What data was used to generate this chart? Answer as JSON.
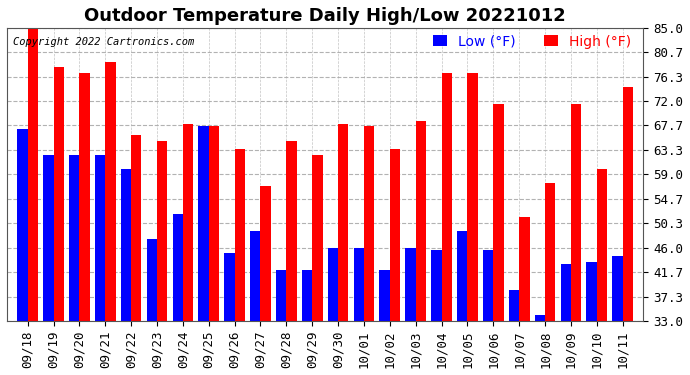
{
  "title": "Outdoor Temperature Daily High/Low 20221012",
  "copyright": "Copyright 2022 Cartronics.com",
  "legend_low": "Low (°F)",
  "legend_high": "High (°F)",
  "dates": [
    "09/18",
    "09/19",
    "09/20",
    "09/21",
    "09/22",
    "09/23",
    "09/24",
    "09/25",
    "09/26",
    "09/27",
    "09/28",
    "09/29",
    "09/30",
    "10/01",
    "10/02",
    "10/03",
    "10/04",
    "10/05",
    "10/06",
    "10/07",
    "10/08",
    "10/09",
    "10/10",
    "10/11"
  ],
  "high": [
    85.0,
    78.0,
    77.0,
    79.0,
    66.0,
    65.0,
    68.0,
    67.5,
    63.5,
    57.0,
    65.0,
    62.5,
    68.0,
    67.5,
    63.5,
    68.5,
    77.0,
    77.0,
    71.5,
    51.5,
    57.5,
    71.5,
    60.0,
    74.5
  ],
  "low": [
    67.0,
    62.5,
    62.5,
    62.5,
    60.0,
    47.5,
    52.0,
    67.5,
    45.0,
    49.0,
    42.0,
    42.0,
    46.0,
    46.0,
    42.0,
    46.0,
    45.5,
    49.0,
    45.5,
    38.5,
    34.0,
    43.0,
    43.5,
    44.5
  ],
  "yticks": [
    33.0,
    37.3,
    41.7,
    46.0,
    50.3,
    54.7,
    59.0,
    63.3,
    67.7,
    72.0,
    76.3,
    80.7,
    85.0
  ],
  "ylim": [
    33.0,
    85.0
  ],
  "bar_color_high": "#ff0000",
  "bar_color_low": "#0000ff",
  "grid_color": "#aaaaaa",
  "background_color": "#ffffff",
  "title_fontsize": 13,
  "tick_fontsize": 9,
  "legend_fontsize": 10
}
